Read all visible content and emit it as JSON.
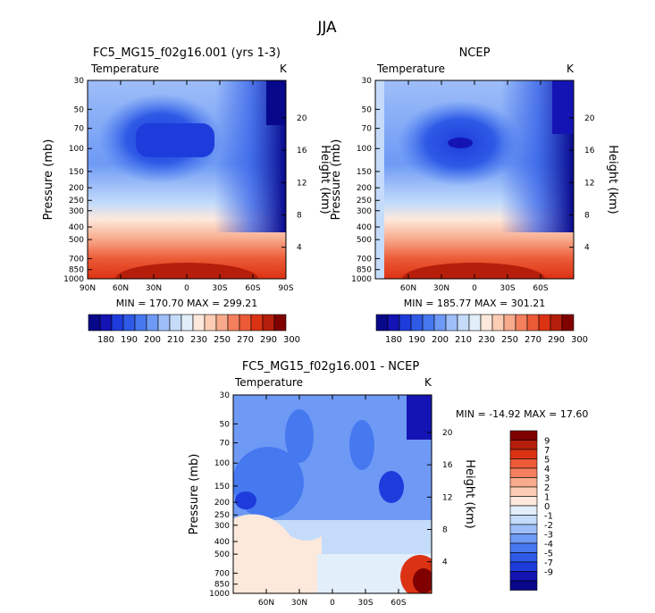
{
  "figure": {
    "season_title": "JJA"
  },
  "chart_data": [
    {
      "type": "heatmap",
      "title": "FC5_MG15_f02g16.001 (yrs 1-3)",
      "variable_label": "Temperature",
      "units": "K",
      "ylabel": "Pressure (mb)",
      "y2label": "Height (km)",
      "x_ticks": [
        "90N",
        "60N",
        "30N",
        "0",
        "30S",
        "60S",
        "90S"
      ],
      "y_ticks": [
        "30",
        "50",
        "70",
        "100",
        "150",
        "200",
        "250",
        "300",
        "400",
        "500",
        "700",
        "850",
        "1000"
      ],
      "height_ticks": [
        "20",
        "16",
        "12",
        "8",
        "4"
      ],
      "ylim_mb": [
        1000,
        30
      ],
      "xlim_lat": [
        90,
        -90
      ],
      "min_max_text": "MIN = 170.70   MAX = 299.21",
      "min": 170.7,
      "max": 299.21,
      "colorbar_labels": [
        "180",
        "190",
        "200",
        "210",
        "230",
        "250",
        "270",
        "290",
        "300"
      ],
      "colorbar_orientation": "horizontal"
    },
    {
      "type": "heatmap",
      "title": "NCEP",
      "variable_label": "Temperature",
      "units": "K",
      "ylabel": "Pressure (mb)",
      "y2label": "Height (km)",
      "x_ticks": [
        "60N",
        "30N",
        "0",
        "30S",
        "60S"
      ],
      "y_ticks": [
        "30",
        "50",
        "70",
        "100",
        "150",
        "200",
        "250",
        "300",
        "400",
        "500",
        "700",
        "850",
        "1000"
      ],
      "height_ticks": [
        "20",
        "16",
        "12",
        "8",
        "4"
      ],
      "ylim_mb": [
        1000,
        30
      ],
      "min_max_text": "MIN = 185.77   MAX = 301.21",
      "min": 185.77,
      "max": 301.21,
      "colorbar_labels": [
        "180",
        "190",
        "200",
        "210",
        "230",
        "250",
        "270",
        "290",
        "300"
      ],
      "colorbar_orientation": "horizontal"
    },
    {
      "type": "heatmap",
      "title": "FC5_MG15_f02g16.001 - NCEP",
      "variable_label": "Temperature",
      "units": "K",
      "ylabel": "Pressure (mb)",
      "y2label": "Height (km)",
      "x_ticks": [
        "60N",
        "30N",
        "0",
        "30S",
        "60S"
      ],
      "y_ticks": [
        "30",
        "50",
        "70",
        "100",
        "150",
        "200",
        "250",
        "300",
        "400",
        "500",
        "700",
        "850",
        "1000"
      ],
      "height_ticks": [
        "20",
        "16",
        "12",
        "8",
        "4"
      ],
      "ylim_mb": [
        1000,
        30
      ],
      "min_max_text": "MIN = -14.92   MAX =  17.60",
      "min": -14.92,
      "max": 17.6,
      "colorbar_labels": [
        "9",
        "7",
        "5",
        "4",
        "3",
        "2",
        "1",
        "0",
        "-1",
        "-2",
        "-3",
        "-4",
        "-5",
        "-7",
        "-9"
      ],
      "colorbar_orientation": "vertical"
    }
  ],
  "colors": {
    "abs_scale": [
      "#08088a",
      "#1414b4",
      "#1e3cdc",
      "#2e5ae6",
      "#4678f0",
      "#6e9af5",
      "#9ebef8",
      "#c4dcfa",
      "#e2eefa",
      "#fde8dc",
      "#fcccb4",
      "#f8aa8c",
      "#f4805e",
      "#ec5a36",
      "#dc3214",
      "#b41e0a",
      "#800000"
    ],
    "diff_scale": [
      "#800000",
      "#b41e0a",
      "#dc3214",
      "#ec5a36",
      "#f4805e",
      "#f8aa8c",
      "#fcccb4",
      "#fde8dc",
      "#e2eefa",
      "#c4dcfa",
      "#9ebef8",
      "#6e9af5",
      "#4678f0",
      "#2e5ae6",
      "#1e3cdc",
      "#1414b4",
      "#08088a"
    ]
  }
}
